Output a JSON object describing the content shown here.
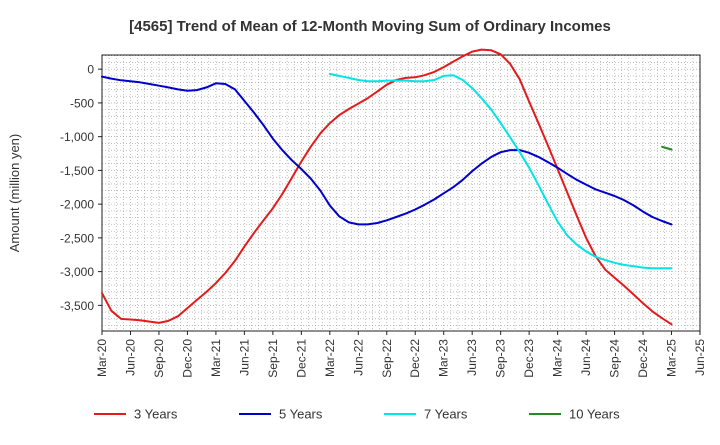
{
  "chart_data": {
    "type": "line",
    "title": "[4565]  Trend of Mean of 12-Month Moving Sum of Ordinary Incomes",
    "xlabel": "",
    "ylabel": "Amount (million yen)",
    "ylim": [
      -3880,
      210
    ],
    "xlim": [
      0,
      21
    ],
    "grid": true,
    "legend_position": "bottom",
    "x_ticks": [
      "Mar-20",
      "Jun-20",
      "Sep-20",
      "Dec-20",
      "Mar-21",
      "Jun-21",
      "Sep-21",
      "Dec-21",
      "Mar-22",
      "Jun-22",
      "Sep-22",
      "Dec-22",
      "Mar-23",
      "Jun-23",
      "Sep-23",
      "Dec-23",
      "Mar-24",
      "Jun-24",
      "Sep-24",
      "Dec-24",
      "Mar-25",
      "Jun-25"
    ],
    "y_ticks": [
      0,
      -500,
      -1000,
      -1500,
      -2000,
      -2500,
      -3000,
      -3500
    ],
    "y_tick_labels": [
      "0",
      "-500",
      "-1,000",
      "-1,500",
      "-2,000",
      "-2,500",
      "-3,000",
      "-3,500"
    ],
    "series": [
      {
        "name": "3 Years",
        "color": "#e41a1c",
        "points": [
          [
            0,
            -3320
          ],
          [
            0.33,
            -3580
          ],
          [
            0.67,
            -3700
          ],
          [
            1,
            -3710
          ],
          [
            1.33,
            -3720
          ],
          [
            1.67,
            -3740
          ],
          [
            2,
            -3760
          ],
          [
            2.33,
            -3730
          ],
          [
            2.67,
            -3660
          ],
          [
            3,
            -3540
          ],
          [
            3.33,
            -3420
          ],
          [
            3.67,
            -3300
          ],
          [
            4,
            -3170
          ],
          [
            4.33,
            -3020
          ],
          [
            4.67,
            -2840
          ],
          [
            5,
            -2630
          ],
          [
            5.33,
            -2430
          ],
          [
            5.67,
            -2240
          ],
          [
            6,
            -2060
          ],
          [
            6.33,
            -1850
          ],
          [
            6.67,
            -1610
          ],
          [
            7,
            -1370
          ],
          [
            7.33,
            -1150
          ],
          [
            7.67,
            -950
          ],
          [
            8,
            -800
          ],
          [
            8.33,
            -680
          ],
          [
            8.67,
            -590
          ],
          [
            9,
            -510
          ],
          [
            9.33,
            -430
          ],
          [
            9.67,
            -330
          ],
          [
            10,
            -230
          ],
          [
            10.33,
            -160
          ],
          [
            10.67,
            -130
          ],
          [
            11,
            -120
          ],
          [
            11.33,
            -90
          ],
          [
            11.67,
            -40
          ],
          [
            12,
            30
          ],
          [
            12.33,
            110
          ],
          [
            12.67,
            190
          ],
          [
            13,
            260
          ],
          [
            13.33,
            290
          ],
          [
            13.67,
            280
          ],
          [
            14,
            220
          ],
          [
            14.33,
            80
          ],
          [
            14.67,
            -150
          ],
          [
            15,
            -480
          ],
          [
            15.33,
            -800
          ],
          [
            15.67,
            -1140
          ],
          [
            16,
            -1480
          ],
          [
            16.33,
            -1820
          ],
          [
            16.67,
            -2170
          ],
          [
            17,
            -2500
          ],
          [
            17.33,
            -2770
          ],
          [
            17.67,
            -2970
          ],
          [
            18,
            -3090
          ],
          [
            18.33,
            -3210
          ],
          [
            18.67,
            -3340
          ],
          [
            19,
            -3470
          ],
          [
            19.33,
            -3590
          ],
          [
            19.67,
            -3690
          ],
          [
            20,
            -3780
          ]
        ]
      },
      {
        "name": "5 Years",
        "color": "#0000cd",
        "points": [
          [
            0,
            -110
          ],
          [
            0.33,
            -140
          ],
          [
            0.67,
            -165
          ],
          [
            1,
            -180
          ],
          [
            1.33,
            -195
          ],
          [
            1.67,
            -220
          ],
          [
            2,
            -245
          ],
          [
            2.33,
            -270
          ],
          [
            2.67,
            -300
          ],
          [
            3,
            -320
          ],
          [
            3.33,
            -310
          ],
          [
            3.67,
            -270
          ],
          [
            4,
            -210
          ],
          [
            4.33,
            -220
          ],
          [
            4.67,
            -300
          ],
          [
            5,
            -470
          ],
          [
            5.33,
            -640
          ],
          [
            5.67,
            -830
          ],
          [
            6,
            -1030
          ],
          [
            6.33,
            -1200
          ],
          [
            6.67,
            -1350
          ],
          [
            7,
            -1480
          ],
          [
            7.33,
            -1620
          ],
          [
            7.67,
            -1800
          ],
          [
            8,
            -2020
          ],
          [
            8.33,
            -2180
          ],
          [
            8.67,
            -2270
          ],
          [
            9,
            -2300
          ],
          [
            9.33,
            -2300
          ],
          [
            9.67,
            -2280
          ],
          [
            10,
            -2240
          ],
          [
            10.33,
            -2190
          ],
          [
            10.67,
            -2140
          ],
          [
            11,
            -2080
          ],
          [
            11.33,
            -2010
          ],
          [
            11.67,
            -1930
          ],
          [
            12,
            -1840
          ],
          [
            12.33,
            -1750
          ],
          [
            12.67,
            -1640
          ],
          [
            13,
            -1510
          ],
          [
            13.33,
            -1400
          ],
          [
            13.67,
            -1300
          ],
          [
            14,
            -1230
          ],
          [
            14.33,
            -1200
          ],
          [
            14.67,
            -1200
          ],
          [
            15,
            -1240
          ],
          [
            15.33,
            -1300
          ],
          [
            15.67,
            -1380
          ],
          [
            16,
            -1460
          ],
          [
            16.33,
            -1550
          ],
          [
            16.67,
            -1640
          ],
          [
            17,
            -1710
          ],
          [
            17.33,
            -1780
          ],
          [
            17.67,
            -1830
          ],
          [
            18,
            -1880
          ],
          [
            18.33,
            -1940
          ],
          [
            18.67,
            -2020
          ],
          [
            19,
            -2110
          ],
          [
            19.33,
            -2190
          ],
          [
            19.67,
            -2250
          ],
          [
            20,
            -2300
          ]
        ]
      },
      {
        "name": "7 Years",
        "color": "#00e5e5",
        "points": [
          [
            8,
            -70
          ],
          [
            8.33,
            -100
          ],
          [
            8.67,
            -130
          ],
          [
            9,
            -160
          ],
          [
            9.33,
            -180
          ],
          [
            9.67,
            -180
          ],
          [
            10,
            -170
          ],
          [
            10.33,
            -170
          ],
          [
            10.67,
            -170
          ],
          [
            11,
            -180
          ],
          [
            11.33,
            -180
          ],
          [
            11.67,
            -160
          ],
          [
            12,
            -100
          ],
          [
            12.33,
            -90
          ],
          [
            12.67,
            -160
          ],
          [
            13,
            -280
          ],
          [
            13.33,
            -430
          ],
          [
            13.67,
            -600
          ],
          [
            14,
            -800
          ],
          [
            14.33,
            -1010
          ],
          [
            14.67,
            -1230
          ],
          [
            15,
            -1460
          ],
          [
            15.33,
            -1720
          ],
          [
            15.67,
            -2000
          ],
          [
            16,
            -2260
          ],
          [
            16.33,
            -2460
          ],
          [
            16.67,
            -2600
          ],
          [
            17,
            -2700
          ],
          [
            17.33,
            -2780
          ],
          [
            17.67,
            -2830
          ],
          [
            18,
            -2870
          ],
          [
            18.33,
            -2900
          ],
          [
            18.67,
            -2920
          ],
          [
            19,
            -2940
          ],
          [
            19.33,
            -2950
          ],
          [
            19.67,
            -2950
          ],
          [
            20,
            -2950
          ]
        ]
      },
      {
        "name": "10 Years",
        "color": "#228b22",
        "points": [
          [
            19.67,
            -1150
          ],
          [
            20,
            -1190
          ]
        ]
      }
    ]
  }
}
